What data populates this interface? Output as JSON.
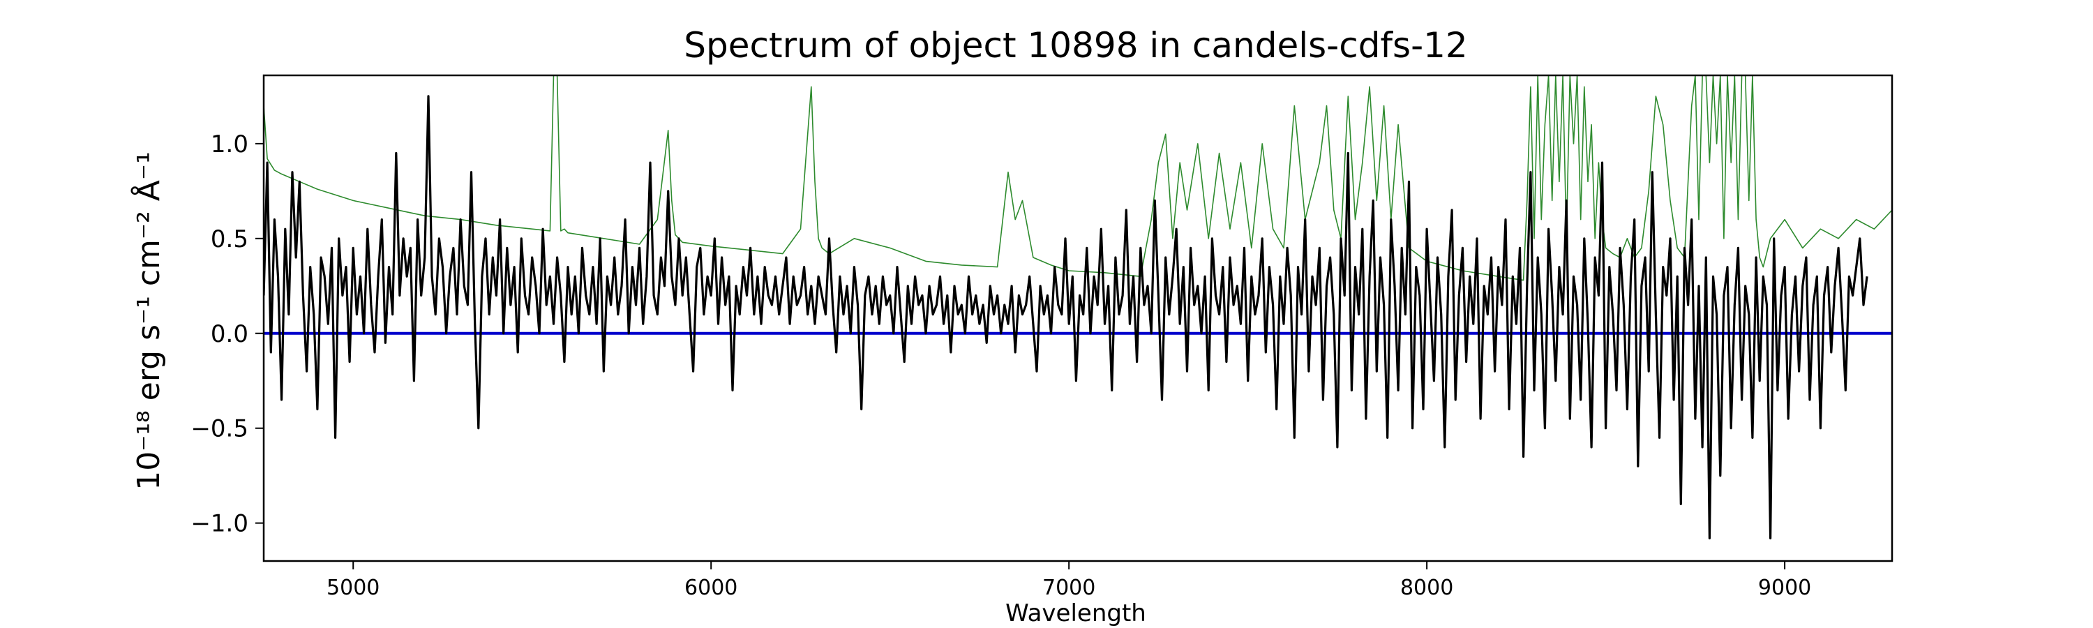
{
  "chart_data": {
    "type": "line",
    "title": "Spectrum of object 10898 in candels-cdfs-12",
    "xlabel": "Wavelength",
    "ylabel": "10⁻¹⁸ erg s⁻¹ cm⁻² Å⁻¹",
    "xlim": [
      4750,
      9300
    ],
    "ylim": [
      -1.2,
      1.36
    ],
    "xticks": [
      5000,
      6000,
      7000,
      8000,
      9000
    ],
    "yticks": [
      -1.0,
      -0.5,
      0.0,
      0.5,
      1.0
    ],
    "ytick_labels": [
      "−1.0",
      "−0.5",
      "0.0",
      "0.5",
      "1.0"
    ],
    "grid": false,
    "series": [
      {
        "role": "zero-line",
        "color": "#0000cc",
        "x": [
          4750,
          9300
        ],
        "y": [
          0.0,
          0.0
        ]
      },
      {
        "role": "error-spectrum",
        "color": "#2e8b2e",
        "x": [
          4750,
          4760,
          4780,
          4800,
          4850,
          4900,
          4950,
          5000,
          5050,
          5100,
          5150,
          5200,
          5300,
          5400,
          5500,
          5550,
          5560,
          5570,
          5580,
          5590,
          5600,
          5700,
          5800,
          5850,
          5880,
          5890,
          5900,
          5920,
          6000,
          6100,
          6200,
          6250,
          6280,
          6290,
          6300,
          6310,
          6330,
          6400,
          6500,
          6600,
          6700,
          6800,
          6830,
          6850,
          6870,
          6900,
          6950,
          7000,
          7100,
          7200,
          7230,
          7250,
          7270,
          7290,
          7310,
          7330,
          7360,
          7390,
          7420,
          7450,
          7480,
          7510,
          7540,
          7570,
          7600,
          7630,
          7660,
          7700,
          7720,
          7740,
          7760,
          7780,
          7800,
          7820,
          7840,
          7860,
          7880,
          7900,
          7920,
          7950,
          8000,
          8100,
          8200,
          8270,
          8280,
          8290,
          8300,
          8310,
          8320,
          8330,
          8340,
          8350,
          8360,
          8370,
          8380,
          8390,
          8400,
          8410,
          8420,
          8430,
          8440,
          8450,
          8460,
          8470,
          8480,
          8490,
          8500,
          8520,
          8540,
          8560,
          8580,
          8600,
          8620,
          8640,
          8660,
          8680,
          8700,
          8720,
          8740,
          8750,
          8760,
          8770,
          8780,
          8790,
          8800,
          8810,
          8820,
          8830,
          8840,
          8850,
          8860,
          8870,
          8880,
          8890,
          8900,
          8910,
          8920,
          8930,
          8940,
          8960,
          9000,
          9050,
          9100,
          9150,
          9200,
          9250,
          9300
        ],
        "y": [
          1.2,
          0.92,
          0.86,
          0.84,
          0.8,
          0.76,
          0.73,
          0.7,
          0.68,
          0.66,
          0.64,
          0.62,
          0.6,
          0.57,
          0.55,
          0.54,
          1.36,
          1.36,
          0.54,
          0.55,
          0.53,
          0.5,
          0.47,
          0.6,
          1.07,
          0.7,
          0.52,
          0.48,
          0.46,
          0.44,
          0.42,
          0.55,
          1.3,
          0.8,
          0.5,
          0.45,
          0.42,
          0.5,
          0.45,
          0.38,
          0.36,
          0.35,
          0.85,
          0.6,
          0.7,
          0.4,
          0.36,
          0.33,
          0.32,
          0.3,
          0.6,
          0.9,
          1.05,
          0.5,
          0.9,
          0.65,
          1.0,
          0.5,
          0.95,
          0.55,
          0.9,
          0.45,
          1.0,
          0.55,
          0.45,
          1.2,
          0.6,
          0.9,
          1.2,
          0.65,
          0.5,
          1.25,
          0.6,
          0.9,
          1.3,
          0.7,
          1.2,
          0.6,
          1.1,
          0.45,
          0.38,
          0.33,
          0.3,
          0.28,
          0.7,
          1.3,
          0.5,
          1.36,
          0.6,
          1.1,
          1.36,
          0.7,
          1.36,
          0.8,
          1.36,
          0.5,
          1.36,
          1.0,
          1.36,
          0.6,
          1.3,
          0.8,
          1.1,
          0.5,
          0.9,
          0.6,
          0.45,
          0.42,
          0.4,
          0.5,
          0.4,
          0.45,
          0.75,
          1.25,
          1.1,
          0.7,
          0.45,
          0.4,
          1.2,
          1.36,
          0.6,
          1.36,
          1.36,
          0.9,
          1.36,
          1.0,
          1.36,
          0.5,
          1.36,
          0.9,
          1.36,
          0.6,
          1.36,
          1.36,
          0.7,
          1.36,
          0.6,
          0.4,
          0.35,
          0.5,
          0.6,
          0.45,
          0.55,
          0.5,
          0.6,
          0.55,
          0.65
        ]
      },
      {
        "role": "flux",
        "color": "#000000",
        "x_start": 4750,
        "x_step": 10,
        "y": [
          0.2,
          0.9,
          -0.1,
          0.6,
          0.3,
          -0.35,
          0.55,
          0.1,
          0.85,
          0.4,
          0.8,
          0.2,
          -0.2,
          0.35,
          0.1,
          -0.4,
          0.4,
          0.3,
          0.05,
          0.45,
          -0.55,
          0.5,
          0.2,
          0.35,
          -0.15,
          0.45,
          0.1,
          0.3,
          0.0,
          0.55,
          0.15,
          -0.1,
          0.3,
          0.6,
          -0.05,
          0.35,
          0.1,
          0.95,
          0.2,
          0.5,
          0.3,
          0.45,
          -0.25,
          0.6,
          0.2,
          0.4,
          1.25,
          0.3,
          0.1,
          0.5,
          0.35,
          0.0,
          0.3,
          0.45,
          0.1,
          0.6,
          0.25,
          0.15,
          0.85,
          0.05,
          -0.5,
          0.3,
          0.5,
          0.1,
          0.4,
          0.2,
          0.6,
          0.0,
          0.45,
          0.15,
          0.35,
          -0.1,
          0.5,
          0.2,
          0.1,
          0.4,
          0.25,
          0.0,
          0.55,
          0.15,
          0.3,
          0.05,
          0.4,
          0.2,
          -0.15,
          0.35,
          0.1,
          0.3,
          0.0,
          0.45,
          0.2,
          0.1,
          0.35,
          0.05,
          0.5,
          -0.2,
          0.3,
          0.15,
          0.4,
          0.1,
          0.25,
          0.6,
          0.0,
          0.35,
          0.15,
          0.45,
          0.05,
          0.3,
          0.9,
          0.2,
          0.1,
          0.4,
          0.25,
          0.75,
          0.3,
          0.15,
          0.5,
          0.2,
          0.4,
          0.1,
          -0.2,
          0.35,
          0.45,
          0.1,
          0.3,
          0.2,
          0.5,
          0.05,
          0.4,
          0.15,
          0.3,
          -0.3,
          0.25,
          0.1,
          0.35,
          0.2,
          0.45,
          0.1,
          0.3,
          0.05,
          0.35,
          0.2,
          0.15,
          0.3,
          0.1,
          0.25,
          0.4,
          0.05,
          0.3,
          0.15,
          0.2,
          0.35,
          0.1,
          0.25,
          0.05,
          0.3,
          0.2,
          0.1,
          0.5,
          0.15,
          -0.1,
          0.3,
          0.1,
          0.25,
          0.0,
          0.35,
          0.15,
          -0.4,
          0.2,
          0.3,
          0.1,
          0.25,
          0.05,
          0.3,
          0.15,
          0.2,
          0.0,
          0.35,
          0.1,
          -0.15,
          0.25,
          0.05,
          0.3,
          0.15,
          0.2,
          0.0,
          0.25,
          0.1,
          0.15,
          0.3,
          0.05,
          0.2,
          -0.1,
          0.25,
          0.1,
          0.15,
          0.0,
          0.3,
          0.1,
          0.2,
          0.05,
          0.15,
          -0.05,
          0.25,
          0.1,
          0.2,
          0.0,
          0.15,
          0.05,
          0.25,
          -0.1,
          0.2,
          0.1,
          0.15,
          0.3,
          0.05,
          -0.2,
          0.25,
          0.1,
          0.2,
          0.0,
          0.35,
          0.15,
          0.1,
          0.5,
          0.05,
          0.3,
          -0.25,
          0.2,
          0.1,
          0.45,
          0.0,
          0.3,
          0.15,
          0.55,
          0.05,
          0.25,
          -0.3,
          0.4,
          0.1,
          0.2,
          0.65,
          0.05,
          0.3,
          -0.15,
          0.45,
          0.15,
          0.25,
          0.0,
          0.7,
          0.2,
          -0.35,
          0.4,
          0.1,
          0.3,
          0.55,
          0.05,
          0.35,
          -0.2,
          0.45,
          0.15,
          0.25,
          0.0,
          0.3,
          -0.3,
          0.5,
          0.2,
          0.1,
          0.35,
          -0.15,
          0.4,
          0.15,
          0.25,
          0.05,
          0.45,
          -0.25,
          0.3,
          0.1,
          0.2,
          0.5,
          -0.1,
          0.35,
          0.15,
          -0.4,
          0.3,
          0.05,
          0.45,
          0.2,
          -0.55,
          0.35,
          0.1,
          0.6,
          -0.2,
          0.3,
          0.15,
          0.45,
          -0.35,
          0.25,
          0.4,
          0.1,
          -0.6,
          0.5,
          0.2,
          0.95,
          -0.3,
          0.35,
          0.1,
          0.55,
          -0.45,
          0.3,
          0.7,
          -0.2,
          0.4,
          0.15,
          -0.55,
          0.6,
          0.25,
          -0.3,
          0.45,
          0.1,
          0.8,
          -0.5,
          0.35,
          0.2,
          -0.4,
          0.55,
          0.15,
          -0.25,
          0.4,
          0.1,
          -0.6,
          0.3,
          0.65,
          -0.35,
          0.2,
          0.45,
          -0.15,
          0.3,
          0.05,
          0.5,
          -0.45,
          0.25,
          0.1,
          0.4,
          -0.2,
          0.35,
          0.15,
          0.6,
          -0.4,
          0.3,
          0.05,
          0.45,
          -0.65,
          0.25,
          0.85,
          -0.3,
          0.4,
          0.1,
          -0.5,
          0.55,
          0.2,
          -0.25,
          0.35,
          0.1,
          0.7,
          -0.45,
          0.3,
          0.15,
          -0.35,
          0.5,
          0.05,
          -0.6,
          0.4,
          0.2,
          0.9,
          -0.5,
          0.35,
          0.1,
          -0.3,
          0.45,
          0.15,
          -0.4,
          0.3,
          0.6,
          -0.7,
          0.25,
          0.4,
          -0.2,
          0.85,
          0.1,
          -0.55,
          0.35,
          0.2,
          0.5,
          -0.35,
          0.3,
          -0.9,
          0.45,
          0.15,
          0.6,
          -0.45,
          0.25,
          -0.6,
          0.4,
          -1.08,
          0.3,
          0.1,
          -0.75,
          0.2,
          0.35,
          -0.5,
          0.15,
          0.45,
          -0.35,
          0.25,
          0.1,
          -0.55,
          0.4,
          -0.25,
          0.3,
          0.15,
          -1.08,
          0.5,
          -0.3,
          0.2,
          0.35,
          -0.45,
          0.1,
          0.3,
          -0.2,
          0.25,
          0.4,
          -0.35,
          0.15,
          0.3,
          -0.5,
          0.2,
          0.35,
          -0.1,
          0.25,
          0.45,
          0.1,
          -0.3,
          0.3,
          0.2,
          0.35,
          0.5,
          0.15,
          0.3
        ]
      }
    ]
  }
}
